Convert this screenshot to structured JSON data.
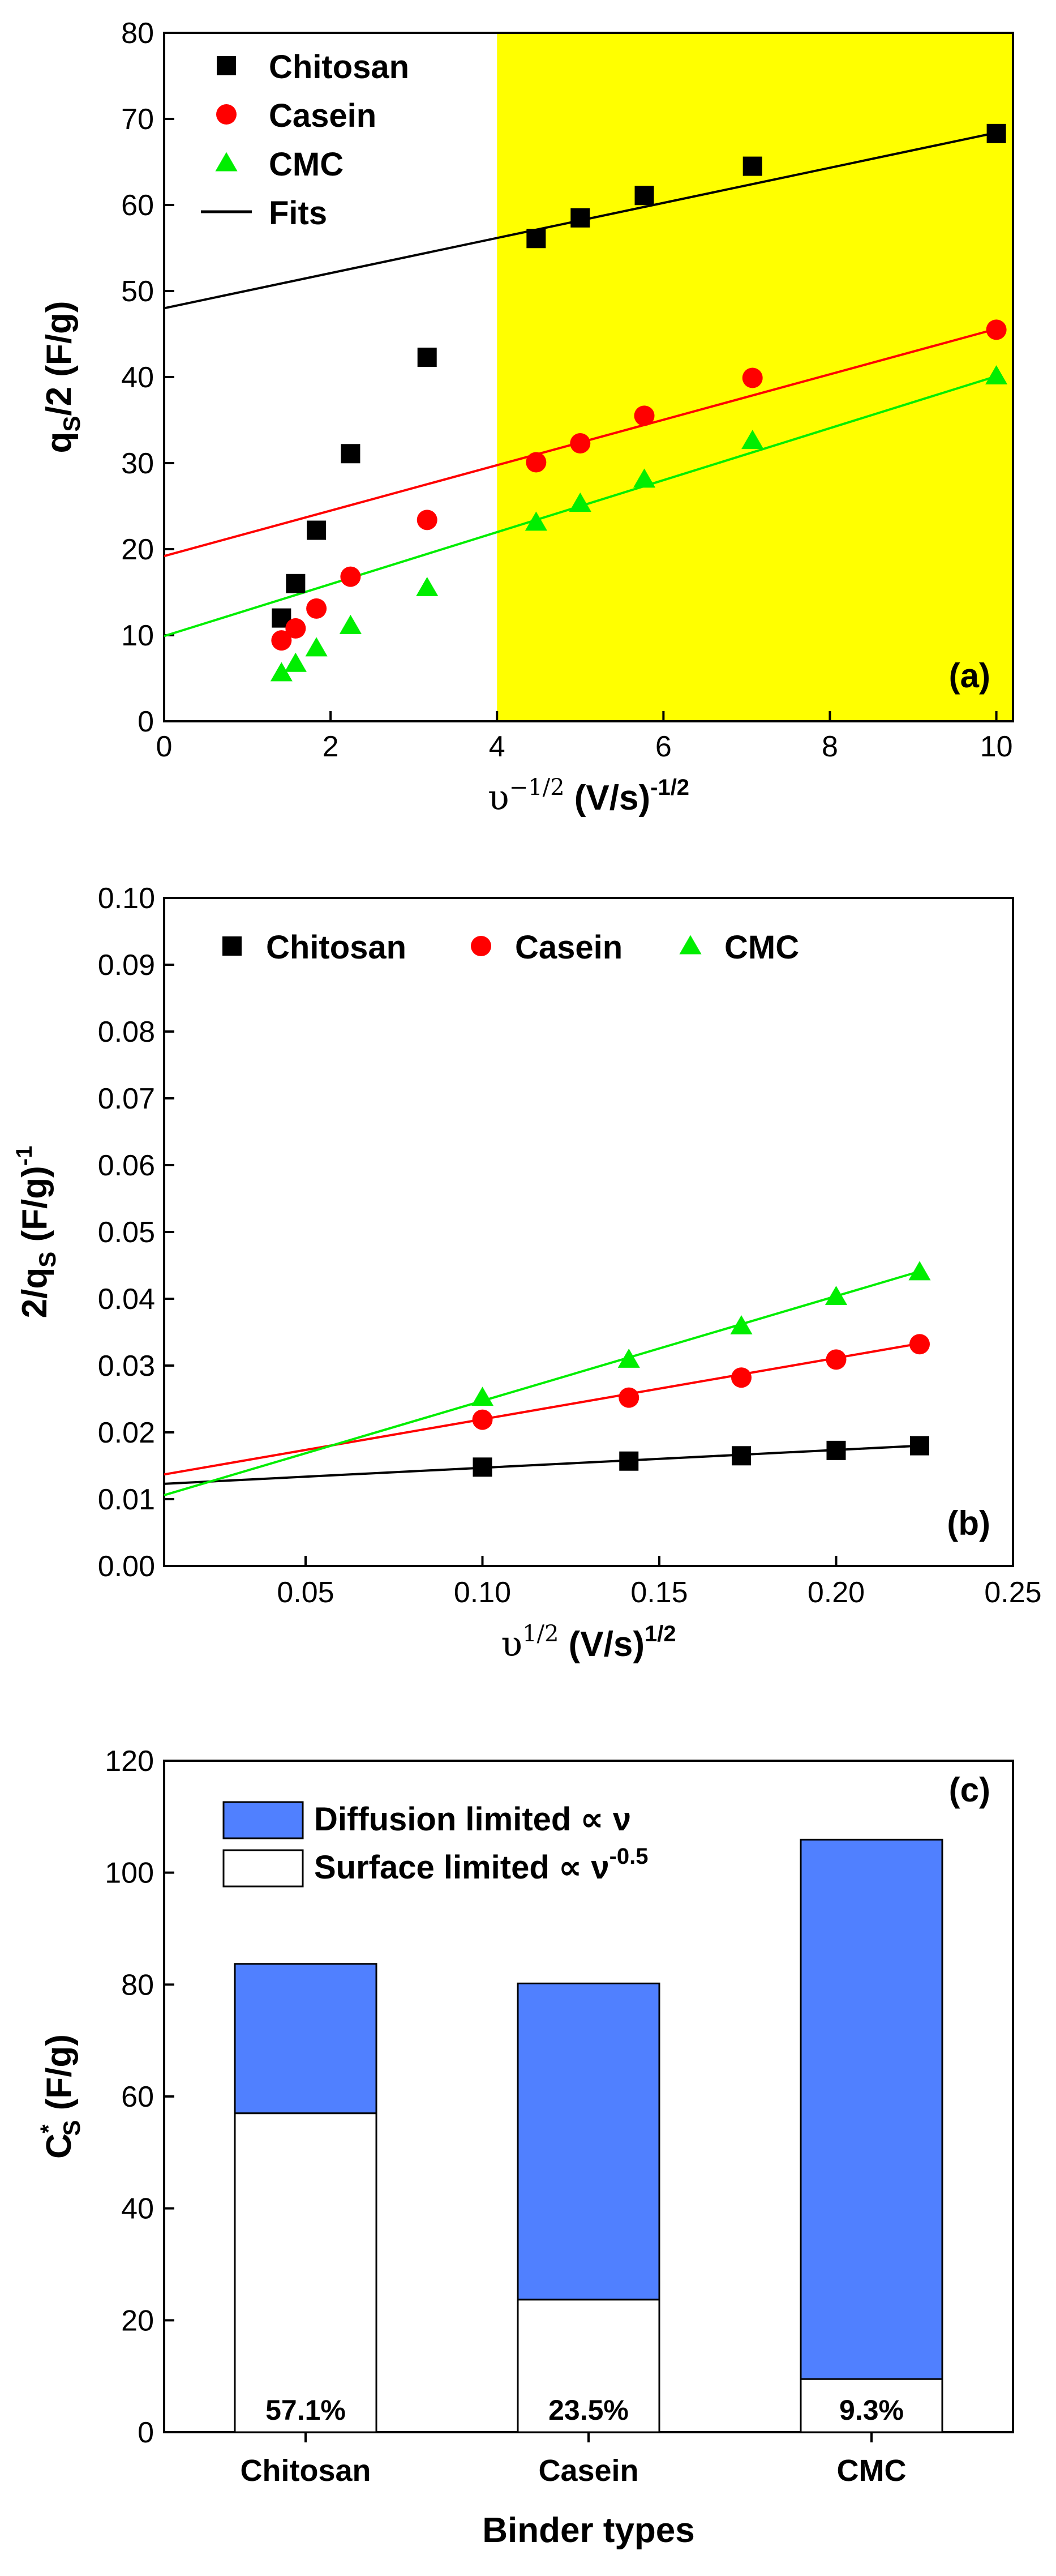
{
  "chart_data": [
    {
      "type": "scatter",
      "panel": "(a)",
      "xlabel": "υ-1/2 (V/s)-1/2",
      "ylabel": "qS/2 (F/g)",
      "xlabel_main": "υ",
      "xlabel_sup": "−1/2",
      "xlabel_units": " (V/s)",
      "xlabel_units_sup": "-1/2",
      "ylabel_main": "q",
      "ylabel_sub": "S",
      "ylabel_rest": "/2 (F/g)",
      "xlim": [
        0,
        10.2
      ],
      "ylim": [
        0,
        80
      ],
      "xticks": [
        0,
        2,
        4,
        6,
        8,
        10
      ],
      "yticks": [
        0,
        10,
        20,
        30,
        40,
        50,
        60,
        70,
        80
      ],
      "highlight_from_x": 4,
      "highlight_color": "#ffff00",
      "legend": [
        "Chitosan",
        "Casein",
        "CMC",
        "Fits"
      ],
      "series": [
        {
          "name": "Chitosan",
          "marker": "square",
          "color": "#000000",
          "x": [
            1.41,
            1.58,
            1.83,
            2.24,
            3.16,
            4.47,
            5.0,
            5.77,
            7.07,
            10.0
          ],
          "y": [
            12.0,
            16.0,
            22.2,
            31.1,
            42.3,
            56.1,
            58.5,
            61.1,
            64.5,
            68.3
          ]
        },
        {
          "name": "Casein",
          "marker": "circle",
          "color": "#ff0000",
          "x": [
            1.41,
            1.58,
            1.83,
            2.24,
            3.16,
            4.47,
            5.0,
            5.77,
            7.07,
            10.0
          ],
          "y": [
            9.4,
            10.8,
            13.1,
            16.8,
            23.4,
            30.1,
            32.3,
            35.5,
            39.9,
            45.5
          ]
        },
        {
          "name": "CMC",
          "marker": "triangle",
          "color": "#00ee00",
          "x": [
            1.41,
            1.58,
            1.83,
            2.24,
            3.16,
            4.47,
            5.0,
            5.77,
            7.07,
            10.0
          ],
          "y": [
            5.6,
            6.7,
            8.5,
            11.1,
            15.5,
            23.1,
            25.3,
            28.1,
            32.6,
            40.1
          ]
        }
      ],
      "fits": [
        {
          "name": "Chitosan",
          "color": "#000000",
          "x": [
            0,
            10.0
          ],
          "y": [
            48.0,
            68.4
          ]
        },
        {
          "name": "Casein",
          "color": "#ff0000",
          "x": [
            0,
            10.0
          ],
          "y": [
            19.2,
            45.6
          ]
        },
        {
          "name": "CMC",
          "color": "#00ee00",
          "x": [
            0,
            10.0
          ],
          "y": [
            9.9,
            40.1
          ]
        }
      ]
    },
    {
      "type": "scatter",
      "panel": "(b)",
      "xlabel": "υ1/2 (V/s)1/2",
      "ylabel": "2/qS (F/g)-1",
      "xlabel_main": "υ",
      "xlabel_sup": "1/2",
      "xlabel_units": " (V/s)",
      "xlabel_units_sup": "1/2",
      "ylabel_main": "2/q",
      "ylabel_sub": "S",
      "ylabel_rest": " (F/g)",
      "ylabel_sup": "-1",
      "xlim": [
        0.01,
        0.25
      ],
      "ylim": [
        0,
        0.1
      ],
      "xticks": [
        "0.05",
        "0.10",
        "0.15",
        "0.20",
        "0.25"
      ],
      "yticks": [
        "0.00",
        "0.01",
        "0.02",
        "0.03",
        "0.04",
        "0.05",
        "0.06",
        "0.07",
        "0.08",
        "0.09",
        "0.10"
      ],
      "legend": [
        "Chitosan",
        "Casein",
        "CMC"
      ],
      "series": [
        {
          "name": "Chitosan",
          "marker": "square",
          "color": "#000000",
          "x": [
            0.1,
            0.1414,
            0.1732,
            0.2,
            0.2236
          ],
          "y": [
            0.0148,
            0.0157,
            0.0165,
            0.0173,
            0.018
          ]
        },
        {
          "name": "Casein",
          "marker": "circle",
          "color": "#ff0000",
          "x": [
            0.1,
            0.1414,
            0.1732,
            0.2,
            0.2236
          ],
          "y": [
            0.0219,
            0.0252,
            0.0282,
            0.0309,
            0.0332
          ]
        },
        {
          "name": "CMC",
          "marker": "triangle",
          "color": "#00ee00",
          "x": [
            0.1,
            0.1414,
            0.1732,
            0.2,
            0.2236
          ],
          "y": [
            0.0252,
            0.0309,
            0.0359,
            0.0403,
            0.044
          ]
        }
      ],
      "fits": [
        {
          "name": "Chitosan",
          "color": "#000000",
          "x": [
            0.01,
            0.2236
          ],
          "y": [
            0.0123,
            0.018
          ]
        },
        {
          "name": "Casein",
          "color": "#ff0000",
          "x": [
            0.01,
            0.2236
          ],
          "y": [
            0.0137,
            0.0333
          ]
        },
        {
          "name": "CMC",
          "color": "#00ee00",
          "x": [
            0.01,
            0.2236
          ],
          "y": [
            0.0106,
            0.0441
          ]
        }
      ]
    },
    {
      "type": "bar",
      "stacked": true,
      "panel": "(c)",
      "xlabel": "Binder types",
      "ylabel": "C*S (F/g)",
      "ylabel_main": "C",
      "ylabel_sup": "*",
      "ylabel_sub": "S",
      "ylabel_rest": " (F/g)",
      "ylim": [
        0,
        120
      ],
      "yticks": [
        0,
        20,
        40,
        60,
        80,
        100,
        120
      ],
      "categories": [
        "Chitosan",
        "Casein",
        "CMC"
      ],
      "series": [
        {
          "name": "Surface limited ∝ ν-0.5",
          "label_main": "Surface limited ∝ ν",
          "label_sup": "-0.5",
          "color": "#ffffff",
          "values": [
            57.0,
            23.7,
            9.5
          ]
        },
        {
          "name": "Diffusion limited ∝ ν",
          "label_main": "Diffusion limited ∝ ν",
          "label_sup": "",
          "color": "#5080ff",
          "values": [
            26.7,
            56.5,
            96.4
          ]
        }
      ],
      "percent_labels": [
        "57.1%",
        "23.5%",
        "9.3%"
      ]
    }
  ]
}
